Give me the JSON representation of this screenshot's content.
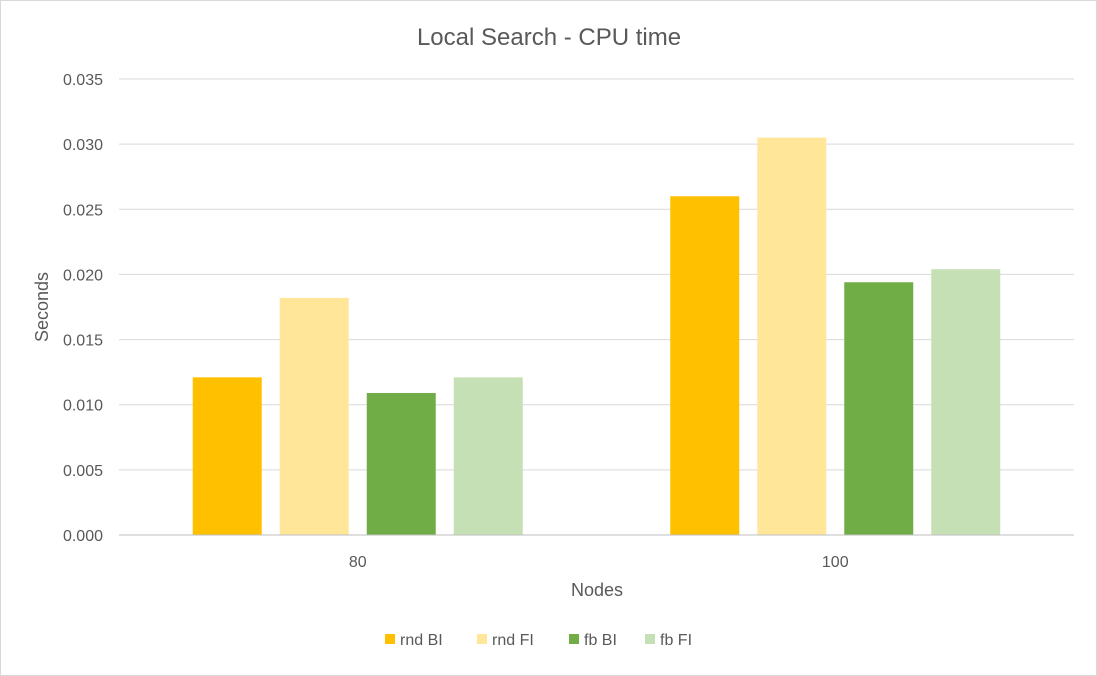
{
  "chart_data": {
    "type": "bar",
    "title": "Local Search - CPU time",
    "xlabel": "Nodes",
    "ylabel": "Seconds",
    "categories": [
      "80",
      "100"
    ],
    "series": [
      {
        "name": "rnd BI",
        "values": [
          0.0121,
          0.026
        ],
        "color": "#ffc000"
      },
      {
        "name": "rnd FI",
        "values": [
          0.0182,
          0.0305
        ],
        "color": "#ffe699"
      },
      {
        "name": "fb BI",
        "values": [
          0.0109,
          0.0194
        ],
        "color": "#70ad47"
      },
      {
        "name": "fb FI",
        "values": [
          0.0121,
          0.0204
        ],
        "color": "#c5e0b4"
      }
    ],
    "ylim": [
      0,
      0.035
    ],
    "yticks": [
      "0.000",
      "0.005",
      "0.010",
      "0.015",
      "0.020",
      "0.025",
      "0.030",
      "0.035"
    ],
    "grid": true,
    "legend_position": "bottom",
    "colors": {
      "gridline": "#d9d9d9",
      "axis": "#bfbfbf",
      "text": "#595959"
    }
  }
}
